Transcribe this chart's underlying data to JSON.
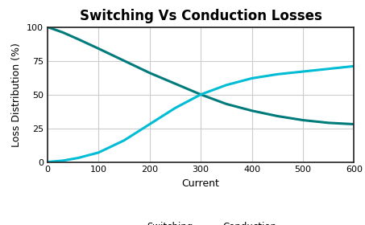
{
  "title": "Switching Vs Conduction Losses",
  "xlabel": "Current",
  "ylabel": "Loss Distribution (%)",
  "xlim": [
    0,
    600
  ],
  "ylim": [
    0,
    100
  ],
  "xticks": [
    0,
    100,
    200,
    300,
    400,
    500,
    600
  ],
  "yticks": [
    0,
    25,
    50,
    75,
    100
  ],
  "switching_color": "#007b7b",
  "conduction_color": "#00bcd4",
  "line_width": 2.2,
  "switching_x": [
    0,
    30,
    60,
    100,
    150,
    200,
    250,
    300,
    350,
    400,
    450,
    500,
    550,
    600
  ],
  "switching_y": [
    100,
    96,
    91,
    84,
    75,
    66,
    58,
    50,
    43,
    38,
    34,
    31,
    29,
    28
  ],
  "conduction_x": [
    0,
    30,
    60,
    100,
    150,
    200,
    250,
    300,
    350,
    400,
    450,
    500,
    550,
    600
  ],
  "conduction_y": [
    0,
    1,
    3,
    7,
    16,
    28,
    40,
    50,
    57,
    62,
    65,
    67,
    69,
    71
  ],
  "legend_switching": "Switching",
  "legend_conduction": "Conduction",
  "background_color": "#ffffff",
  "title_fontsize": 12,
  "label_fontsize": 9,
  "tick_fontsize": 8,
  "legend_fontsize": 8.5,
  "grid_color": "#cccccc"
}
